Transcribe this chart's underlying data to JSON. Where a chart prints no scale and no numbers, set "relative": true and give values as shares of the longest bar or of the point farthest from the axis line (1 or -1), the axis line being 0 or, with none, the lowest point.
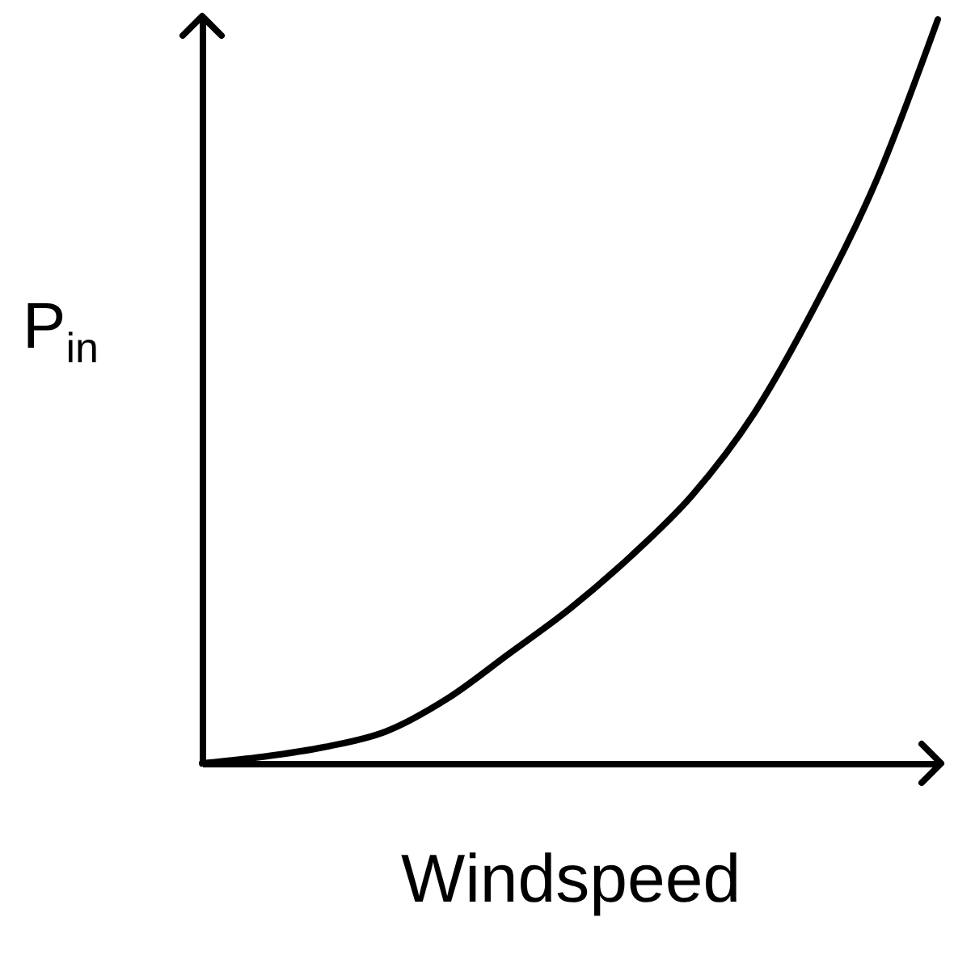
{
  "chart_data": {
    "type": "line",
    "relative": true,
    "xlabel": "Windspeed",
    "ylabel": "P$_{in}$",
    "categories": [
      null,
      null,
      null,
      null,
      null,
      null,
      null,
      null,
      null,
      null,
      null,
      null,
      null
    ],
    "series": [
      {
        "color": "#000000",
        "values": [
          0,
          0.009,
          0.022,
          0.043,
          0.087,
          0.147,
          0.208,
          0.279,
          0.361,
          0.47,
          0.615,
          0.784,
          1
        ]
      }
    ],
    "grid": false,
    "marker": "none",
    "line_style": "solid"
  }
}
